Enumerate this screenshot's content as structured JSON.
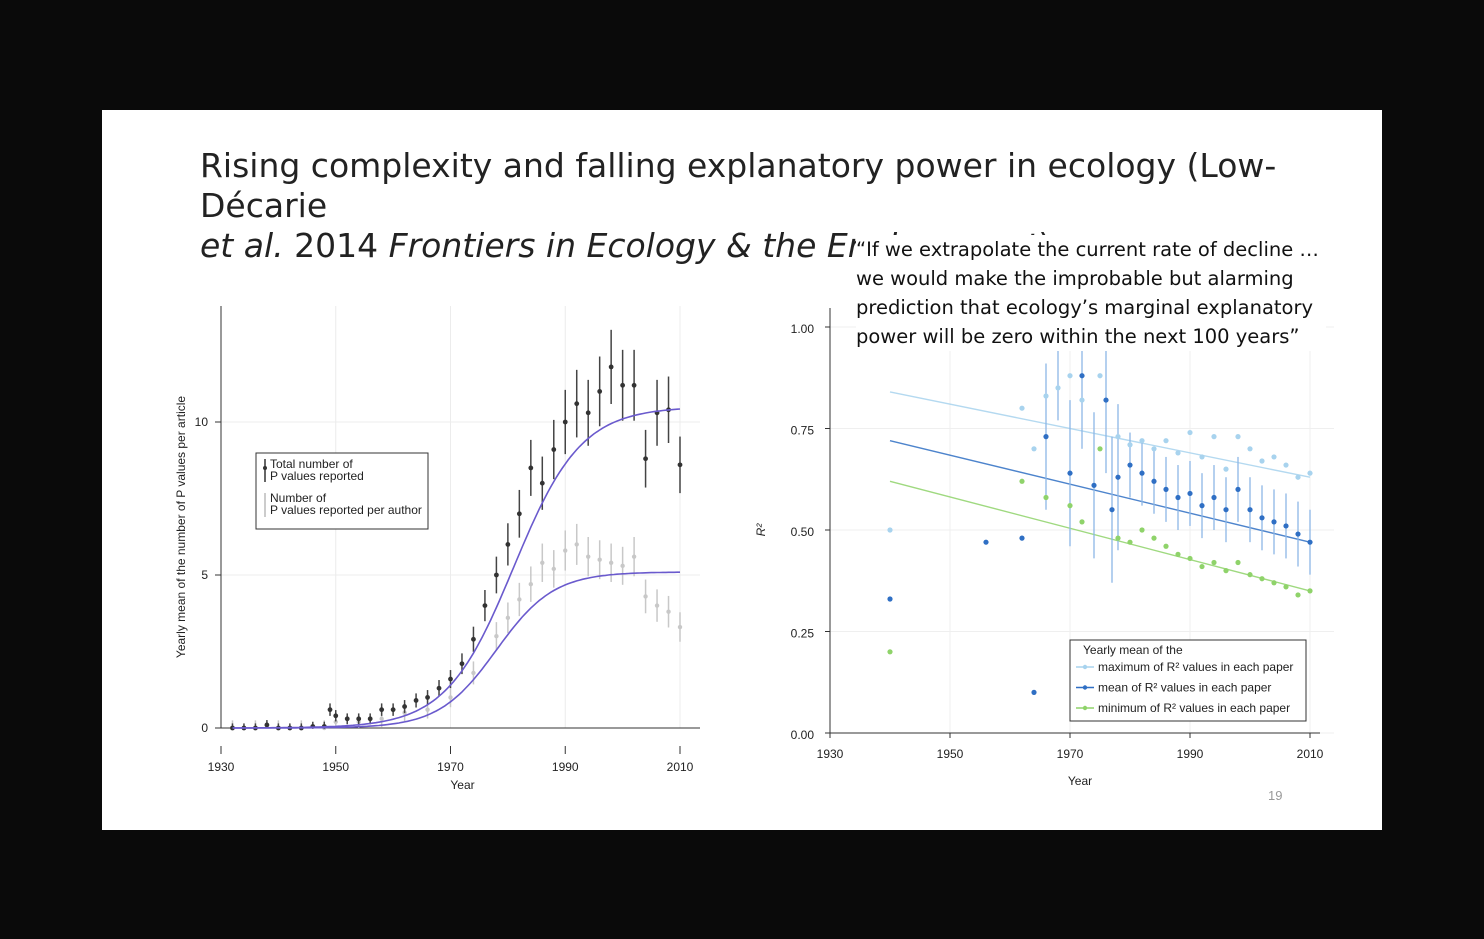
{
  "slide": {
    "title_line1": "Rising complexity and falling explanatory power in ecology (Low-Décarie",
    "title_italic_a": "et al.",
    "title_mid": " 2014 ",
    "title_italic_b": "Frontiers in Ecology & the Environment",
    "title_end": ")",
    "quote": "“If we extrapolate the current rate of decline … we would make the improbable but alarming prediction that ecology’s marginal explanatory power will be zero within the next 100 years”",
    "slide_number": "19"
  },
  "colors": {
    "fit_line": "#6a5acd",
    "total_points": "#333333",
    "per_author_points": "#c8c8c8",
    "max_series": "#a8d3ee",
    "mean_series": "#2f6fc4",
    "min_series": "#8fd36a"
  },
  "chart_data": [
    {
      "type": "scatter",
      "xlabel": "Year",
      "ylabel": "Yearly mean of the number of P values per article",
      "xlim": [
        1930,
        2010
      ],
      "ylim": [
        0,
        14
      ],
      "xticks": [
        "1930",
        "1950",
        "1970",
        "1990",
        "2010"
      ],
      "yticks": [
        "0",
        "5",
        "10"
      ],
      "grid": true,
      "legend_position": "upper-left",
      "legend": [
        "Total number of P values reported",
        "Number of P values reported per author"
      ],
      "series": [
        {
          "name": "Total number of P values reported",
          "x": [
            1932,
            1934,
            1936,
            1938,
            1940,
            1942,
            1944,
            1946,
            1948,
            1949,
            1950,
            1952,
            1954,
            1956,
            1958,
            1960,
            1962,
            1964,
            1966,
            1968,
            1970,
            1972,
            1974,
            1976,
            1978,
            1980,
            1982,
            1984,
            1986,
            1988,
            1990,
            1992,
            1994,
            1996,
            1998,
            2000,
            2002,
            2004,
            2006,
            2008,
            2010
          ],
          "y": [
            0,
            0,
            0,
            0.1,
            0,
            0,
            0,
            0.05,
            0.05,
            0.6,
            0.4,
            0.3,
            0.3,
            0.3,
            0.6,
            0.6,
            0.7,
            0.9,
            1.0,
            1.3,
            1.6,
            2.1,
            2.9,
            4.0,
            5.0,
            6.0,
            7.0,
            8.5,
            8.0,
            9.1,
            10.0,
            10.6,
            10.3,
            11.0,
            11.8,
            11.2,
            11.2,
            8.8,
            10.3,
            10.4,
            8.6
          ]
        },
        {
          "name": "Number of P values reported per author",
          "x": [
            1932,
            1936,
            1940,
            1944,
            1948,
            1950,
            1954,
            1958,
            1962,
            1966,
            1970,
            1974,
            1978,
            1980,
            1982,
            1984,
            1986,
            1988,
            1990,
            1992,
            1994,
            1996,
            1998,
            2000,
            2002,
            2004,
            2006,
            2008,
            2010
          ],
          "y": [
            0,
            0,
            0,
            0,
            0,
            0.2,
            0.2,
            0.3,
            0.5,
            0.6,
            1.0,
            1.8,
            3.0,
            3.6,
            4.2,
            4.7,
            5.4,
            5.2,
            5.8,
            6.0,
            5.6,
            5.5,
            5.4,
            5.3,
            5.6,
            4.3,
            4.0,
            3.8,
            3.3
          ]
        }
      ],
      "fit_curves": [
        {
          "plateau": 10.5
        },
        {
          "plateau": 5.1
        }
      ]
    },
    {
      "type": "scatter",
      "xlabel": "Year",
      "ylabel": "R²",
      "xlim": [
        1930,
        2010
      ],
      "ylim": [
        0,
        1
      ],
      "xticks": [
        "1930",
        "1950",
        "1970",
        "1990",
        "2010"
      ],
      "yticks": [
        "0.00",
        "0.25",
        "0.50",
        "0.75",
        "1.00"
      ],
      "grid": true,
      "legend_position": "lower-right",
      "legend_title": "Yearly mean of the",
      "legend": [
        "maximum of R² values in each paper",
        "mean of R² values in each paper",
        "minimum of R² values in each paper"
      ],
      "series": [
        {
          "name": "maximum of R² values in each paper",
          "x": [
            1940,
            1962,
            1964,
            1966,
            1968,
            1970,
            1972,
            1975,
            1978,
            1980,
            1982,
            1984,
            1986,
            1988,
            1990,
            1992,
            1994,
            1996,
            1998,
            2000,
            2002,
            2004,
            2006,
            2008,
            2010
          ],
          "y": [
            0.5,
            0.8,
            0.7,
            0.83,
            0.85,
            0.88,
            0.82,
            0.88,
            0.73,
            0.71,
            0.72,
            0.7,
            0.72,
            0.69,
            0.74,
            0.68,
            0.73,
            0.65,
            0.73,
            0.7,
            0.67,
            0.68,
            0.66,
            0.63,
            0.64
          ],
          "trend": [
            0.84,
            0.63
          ]
        },
        {
          "name": "mean of R² values in each paper",
          "x": [
            1940,
            1956,
            1962,
            1964,
            1966,
            1968,
            1970,
            1972,
            1974,
            1976,
            1977,
            1978,
            1980,
            1982,
            1984,
            1986,
            1988,
            1990,
            1992,
            1994,
            1996,
            1998,
            2000,
            2002,
            2004,
            2006,
            2008,
            2010
          ],
          "y": [
            0.33,
            0.47,
            0.48,
            0.1,
            0.73,
            0.95,
            0.64,
            0.88,
            0.61,
            0.82,
            0.55,
            0.63,
            0.66,
            0.64,
            0.62,
            0.6,
            0.58,
            0.59,
            0.56,
            0.58,
            0.55,
            0.6,
            0.55,
            0.53,
            0.52,
            0.51,
            0.49,
            0.47
          ],
          "trend": [
            0.72,
            0.47
          ]
        },
        {
          "name": "minimum of R² values in each paper",
          "x": [
            1940,
            1962,
            1966,
            1970,
            1972,
            1975,
            1978,
            1980,
            1982,
            1984,
            1986,
            1988,
            1990,
            1992,
            1994,
            1996,
            1998,
            2000,
            2002,
            2004,
            2006,
            2008,
            2010
          ],
          "y": [
            0.2,
            0.62,
            0.58,
            0.56,
            0.52,
            0.7,
            0.48,
            0.47,
            0.5,
            0.48,
            0.46,
            0.44,
            0.43,
            0.41,
            0.42,
            0.4,
            0.42,
            0.39,
            0.38,
            0.37,
            0.36,
            0.34,
            0.35
          ],
          "trend": [
            0.62,
            0.35
          ]
        }
      ]
    }
  ]
}
